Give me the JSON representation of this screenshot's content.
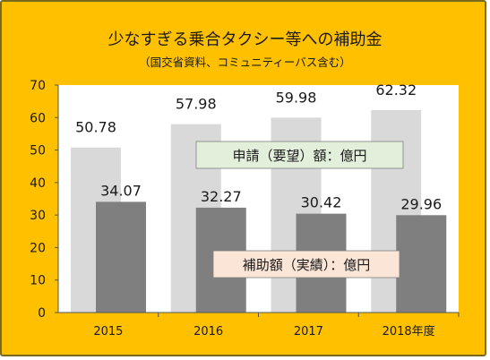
{
  "chart_data": {
    "type": "bar",
    "title": "少なすぎる乗合タクシー等への補助金",
    "subtitle": "（国交省資料、コミュニティーバス含む）",
    "categories": [
      "2015",
      "2016",
      "2017",
      "2018年度"
    ],
    "series": [
      {
        "name": "申請（要望）額：億円",
        "values": [
          50.78,
          57.98,
          59.98,
          62.32
        ],
        "color": "#d9d9d9"
      },
      {
        "name": "補助額（実績）：億円",
        "values": [
          34.07,
          32.27,
          30.42,
          29.96
        ],
        "color": "#7f7f7f"
      }
    ],
    "yticks": [
      0,
      10,
      20,
      30,
      40,
      50,
      60,
      70
    ],
    "ylim": [
      0,
      70
    ],
    "grid": false,
    "legend_placement": "inside plot, labels boxed near series",
    "legend_colors": [
      "#e2efda",
      "#fbe5d6"
    ],
    "plot_background": "#ffffff",
    "frame_color": "#ffc000"
  }
}
